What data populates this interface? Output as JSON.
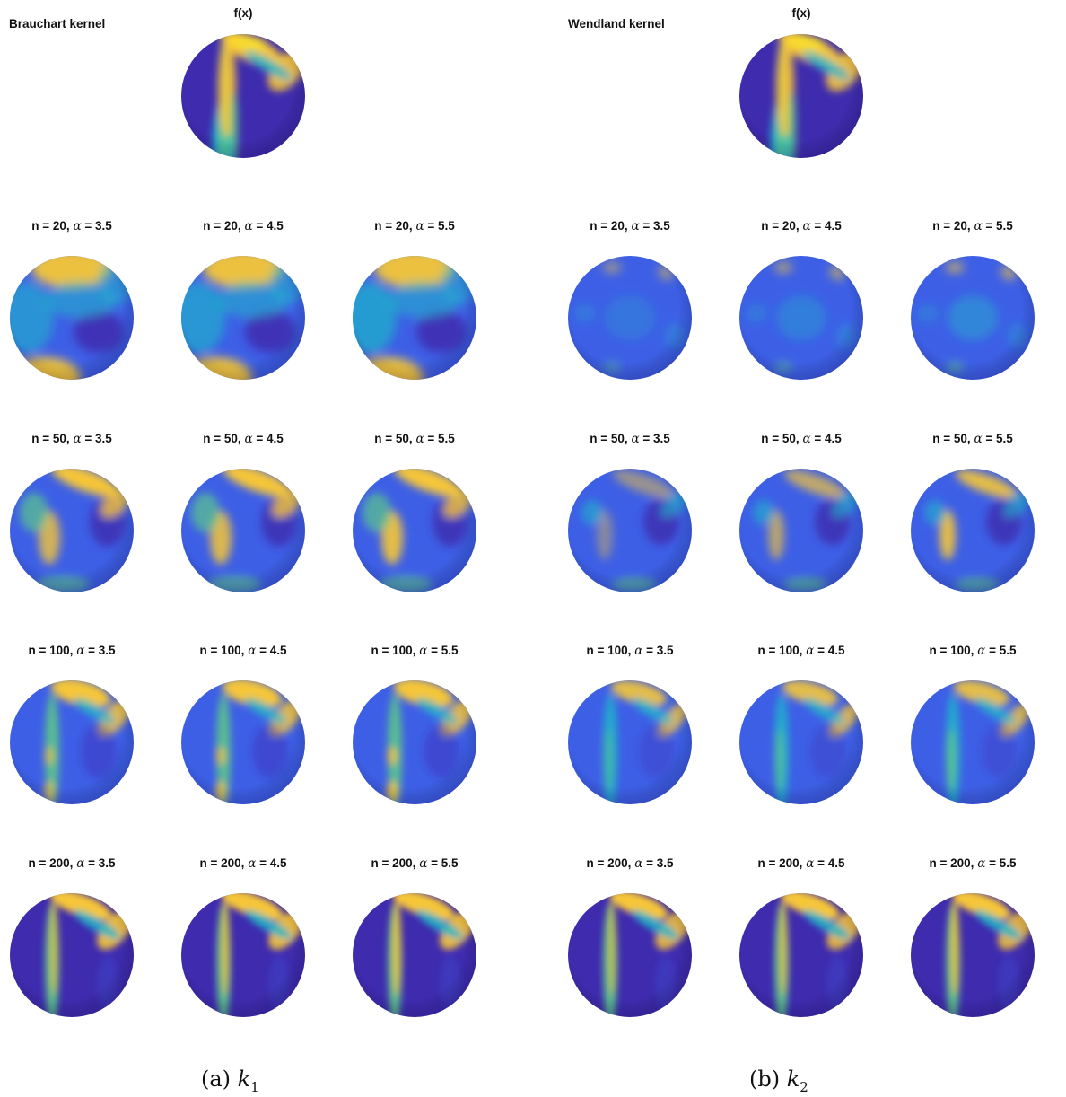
{
  "panels": [
    {
      "kernel_title": "Brauchart kernel",
      "ftitle": "f(x)",
      "caption_prefix": "(a) ",
      "caption_var": "k",
      "caption_sub": "1",
      "rows": [
        {
          "n": "n = 20",
          "cells": [
            {
              "alpha": "3.5"
            },
            {
              "alpha": "4.5"
            },
            {
              "alpha": "5.5"
            }
          ]
        },
        {
          "n": "n = 50",
          "cells": [
            {
              "alpha": "3.5"
            },
            {
              "alpha": "4.5"
            },
            {
              "alpha": "5.5"
            }
          ]
        },
        {
          "n": "n = 100",
          "cells": [
            {
              "alpha": "3.5"
            },
            {
              "alpha": "4.5"
            },
            {
              "alpha": "5.5"
            }
          ]
        },
        {
          "n": "n = 200",
          "cells": [
            {
              "alpha": "3.5"
            },
            {
              "alpha": "4.5"
            },
            {
              "alpha": "5.5"
            }
          ]
        }
      ]
    },
    {
      "kernel_title": "Wendland kernel",
      "ftitle": "f(x)",
      "caption_prefix": "(b) ",
      "caption_var": "k",
      "caption_sub": "2",
      "rows": [
        {
          "n": "n = 20",
          "cells": [
            {
              "alpha": "3.5"
            },
            {
              "alpha": "4.5"
            },
            {
              "alpha": "5.5"
            }
          ]
        },
        {
          "n": "n = 50",
          "cells": [
            {
              "alpha": "3.5"
            },
            {
              "alpha": "4.5"
            },
            {
              "alpha": "5.5"
            }
          ]
        },
        {
          "n": "n = 100",
          "cells": [
            {
              "alpha": "3.5"
            },
            {
              "alpha": "4.5"
            },
            {
              "alpha": "5.5"
            }
          ]
        },
        {
          "n": "n = 200",
          "cells": [
            {
              "alpha": "3.5"
            },
            {
              "alpha": "4.5"
            },
            {
              "alpha": "5.5"
            }
          ]
        }
      ]
    }
  ],
  "alpha_symbol": "α",
  "colormap": {
    "dark_blue": "#3e2bae",
    "blue": "#3d5fe6",
    "cyan": "#1fb6c9",
    "green": "#5cc78a",
    "yellow": "#f6c637",
    "bright_yellow": "#f9dc2a"
  }
}
